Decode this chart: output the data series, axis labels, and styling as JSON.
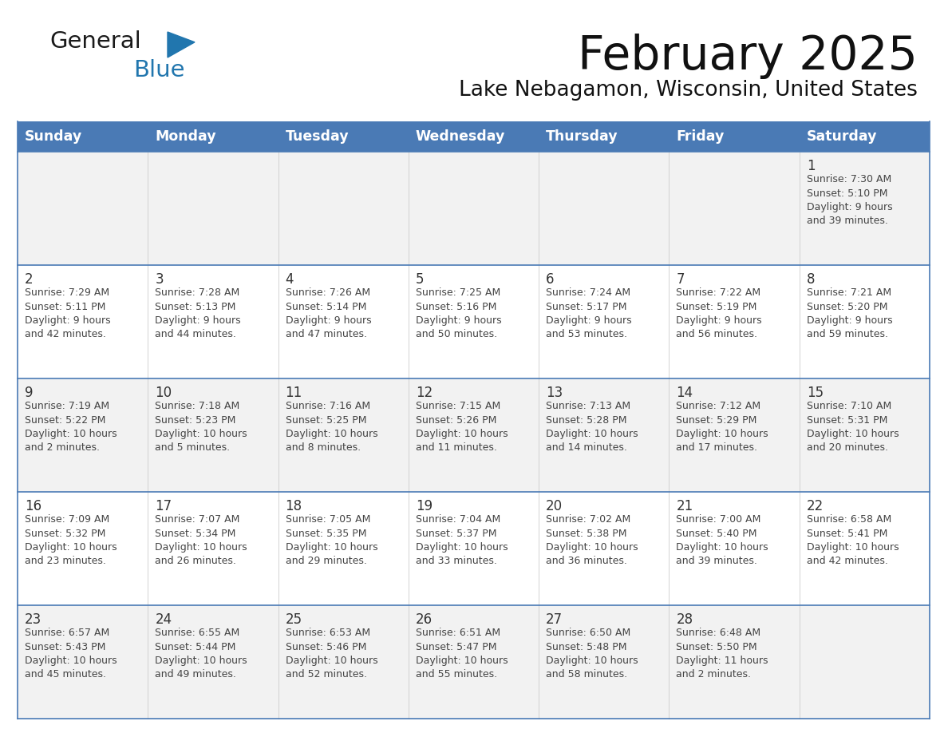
{
  "title": "February 2025",
  "subtitle": "Lake Nebagamon, Wisconsin, United States",
  "header_bg": "#4a7ab5",
  "header_text_color": "#FFFFFF",
  "days_of_week": [
    "Sunday",
    "Monday",
    "Tuesday",
    "Wednesday",
    "Thursday",
    "Friday",
    "Saturday"
  ],
  "cell_bg_white": "#FFFFFF",
  "cell_bg_gray": "#F2F2F2",
  "border_color": "#4a7ab5",
  "row_divider_color": "#4a7ab5",
  "text_color": "#333333",
  "logo_general_color": "#1a1a1a",
  "logo_blue_color": "#2176AE",
  "logo_triangle_color": "#2176AE",
  "calendar_data": [
    [
      null,
      null,
      null,
      null,
      null,
      null,
      {
        "day": 1,
        "sunrise": "7:30 AM",
        "sunset": "5:10 PM",
        "daylight": "9 hours\nand 39 minutes."
      }
    ],
    [
      {
        "day": 2,
        "sunrise": "7:29 AM",
        "sunset": "5:11 PM",
        "daylight": "9 hours\nand 42 minutes."
      },
      {
        "day": 3,
        "sunrise": "7:28 AM",
        "sunset": "5:13 PM",
        "daylight": "9 hours\nand 44 minutes."
      },
      {
        "day": 4,
        "sunrise": "7:26 AM",
        "sunset": "5:14 PM",
        "daylight": "9 hours\nand 47 minutes."
      },
      {
        "day": 5,
        "sunrise": "7:25 AM",
        "sunset": "5:16 PM",
        "daylight": "9 hours\nand 50 minutes."
      },
      {
        "day": 6,
        "sunrise": "7:24 AM",
        "sunset": "5:17 PM",
        "daylight": "9 hours\nand 53 minutes."
      },
      {
        "day": 7,
        "sunrise": "7:22 AM",
        "sunset": "5:19 PM",
        "daylight": "9 hours\nand 56 minutes."
      },
      {
        "day": 8,
        "sunrise": "7:21 AM",
        "sunset": "5:20 PM",
        "daylight": "9 hours\nand 59 minutes."
      }
    ],
    [
      {
        "day": 9,
        "sunrise": "7:19 AM",
        "sunset": "5:22 PM",
        "daylight": "10 hours\nand 2 minutes."
      },
      {
        "day": 10,
        "sunrise": "7:18 AM",
        "sunset": "5:23 PM",
        "daylight": "10 hours\nand 5 minutes."
      },
      {
        "day": 11,
        "sunrise": "7:16 AM",
        "sunset": "5:25 PM",
        "daylight": "10 hours\nand 8 minutes."
      },
      {
        "day": 12,
        "sunrise": "7:15 AM",
        "sunset": "5:26 PM",
        "daylight": "10 hours\nand 11 minutes."
      },
      {
        "day": 13,
        "sunrise": "7:13 AM",
        "sunset": "5:28 PM",
        "daylight": "10 hours\nand 14 minutes."
      },
      {
        "day": 14,
        "sunrise": "7:12 AM",
        "sunset": "5:29 PM",
        "daylight": "10 hours\nand 17 minutes."
      },
      {
        "day": 15,
        "sunrise": "7:10 AM",
        "sunset": "5:31 PM",
        "daylight": "10 hours\nand 20 minutes."
      }
    ],
    [
      {
        "day": 16,
        "sunrise": "7:09 AM",
        "sunset": "5:32 PM",
        "daylight": "10 hours\nand 23 minutes."
      },
      {
        "day": 17,
        "sunrise": "7:07 AM",
        "sunset": "5:34 PM",
        "daylight": "10 hours\nand 26 minutes."
      },
      {
        "day": 18,
        "sunrise": "7:05 AM",
        "sunset": "5:35 PM",
        "daylight": "10 hours\nand 29 minutes."
      },
      {
        "day": 19,
        "sunrise": "7:04 AM",
        "sunset": "5:37 PM",
        "daylight": "10 hours\nand 33 minutes."
      },
      {
        "day": 20,
        "sunrise": "7:02 AM",
        "sunset": "5:38 PM",
        "daylight": "10 hours\nand 36 minutes."
      },
      {
        "day": 21,
        "sunrise": "7:00 AM",
        "sunset": "5:40 PM",
        "daylight": "10 hours\nand 39 minutes."
      },
      {
        "day": 22,
        "sunrise": "6:58 AM",
        "sunset": "5:41 PM",
        "daylight": "10 hours\nand 42 minutes."
      }
    ],
    [
      {
        "day": 23,
        "sunrise": "6:57 AM",
        "sunset": "5:43 PM",
        "daylight": "10 hours\nand 45 minutes."
      },
      {
        "day": 24,
        "sunrise": "6:55 AM",
        "sunset": "5:44 PM",
        "daylight": "10 hours\nand 49 minutes."
      },
      {
        "day": 25,
        "sunrise": "6:53 AM",
        "sunset": "5:46 PM",
        "daylight": "10 hours\nand 52 minutes."
      },
      {
        "day": 26,
        "sunrise": "6:51 AM",
        "sunset": "5:47 PM",
        "daylight": "10 hours\nand 55 minutes."
      },
      {
        "day": 27,
        "sunrise": "6:50 AM",
        "sunset": "5:48 PM",
        "daylight": "10 hours\nand 58 minutes."
      },
      {
        "day": 28,
        "sunrise": "6:48 AM",
        "sunset": "5:50 PM",
        "daylight": "11 hours\nand 2 minutes."
      },
      null
    ]
  ]
}
